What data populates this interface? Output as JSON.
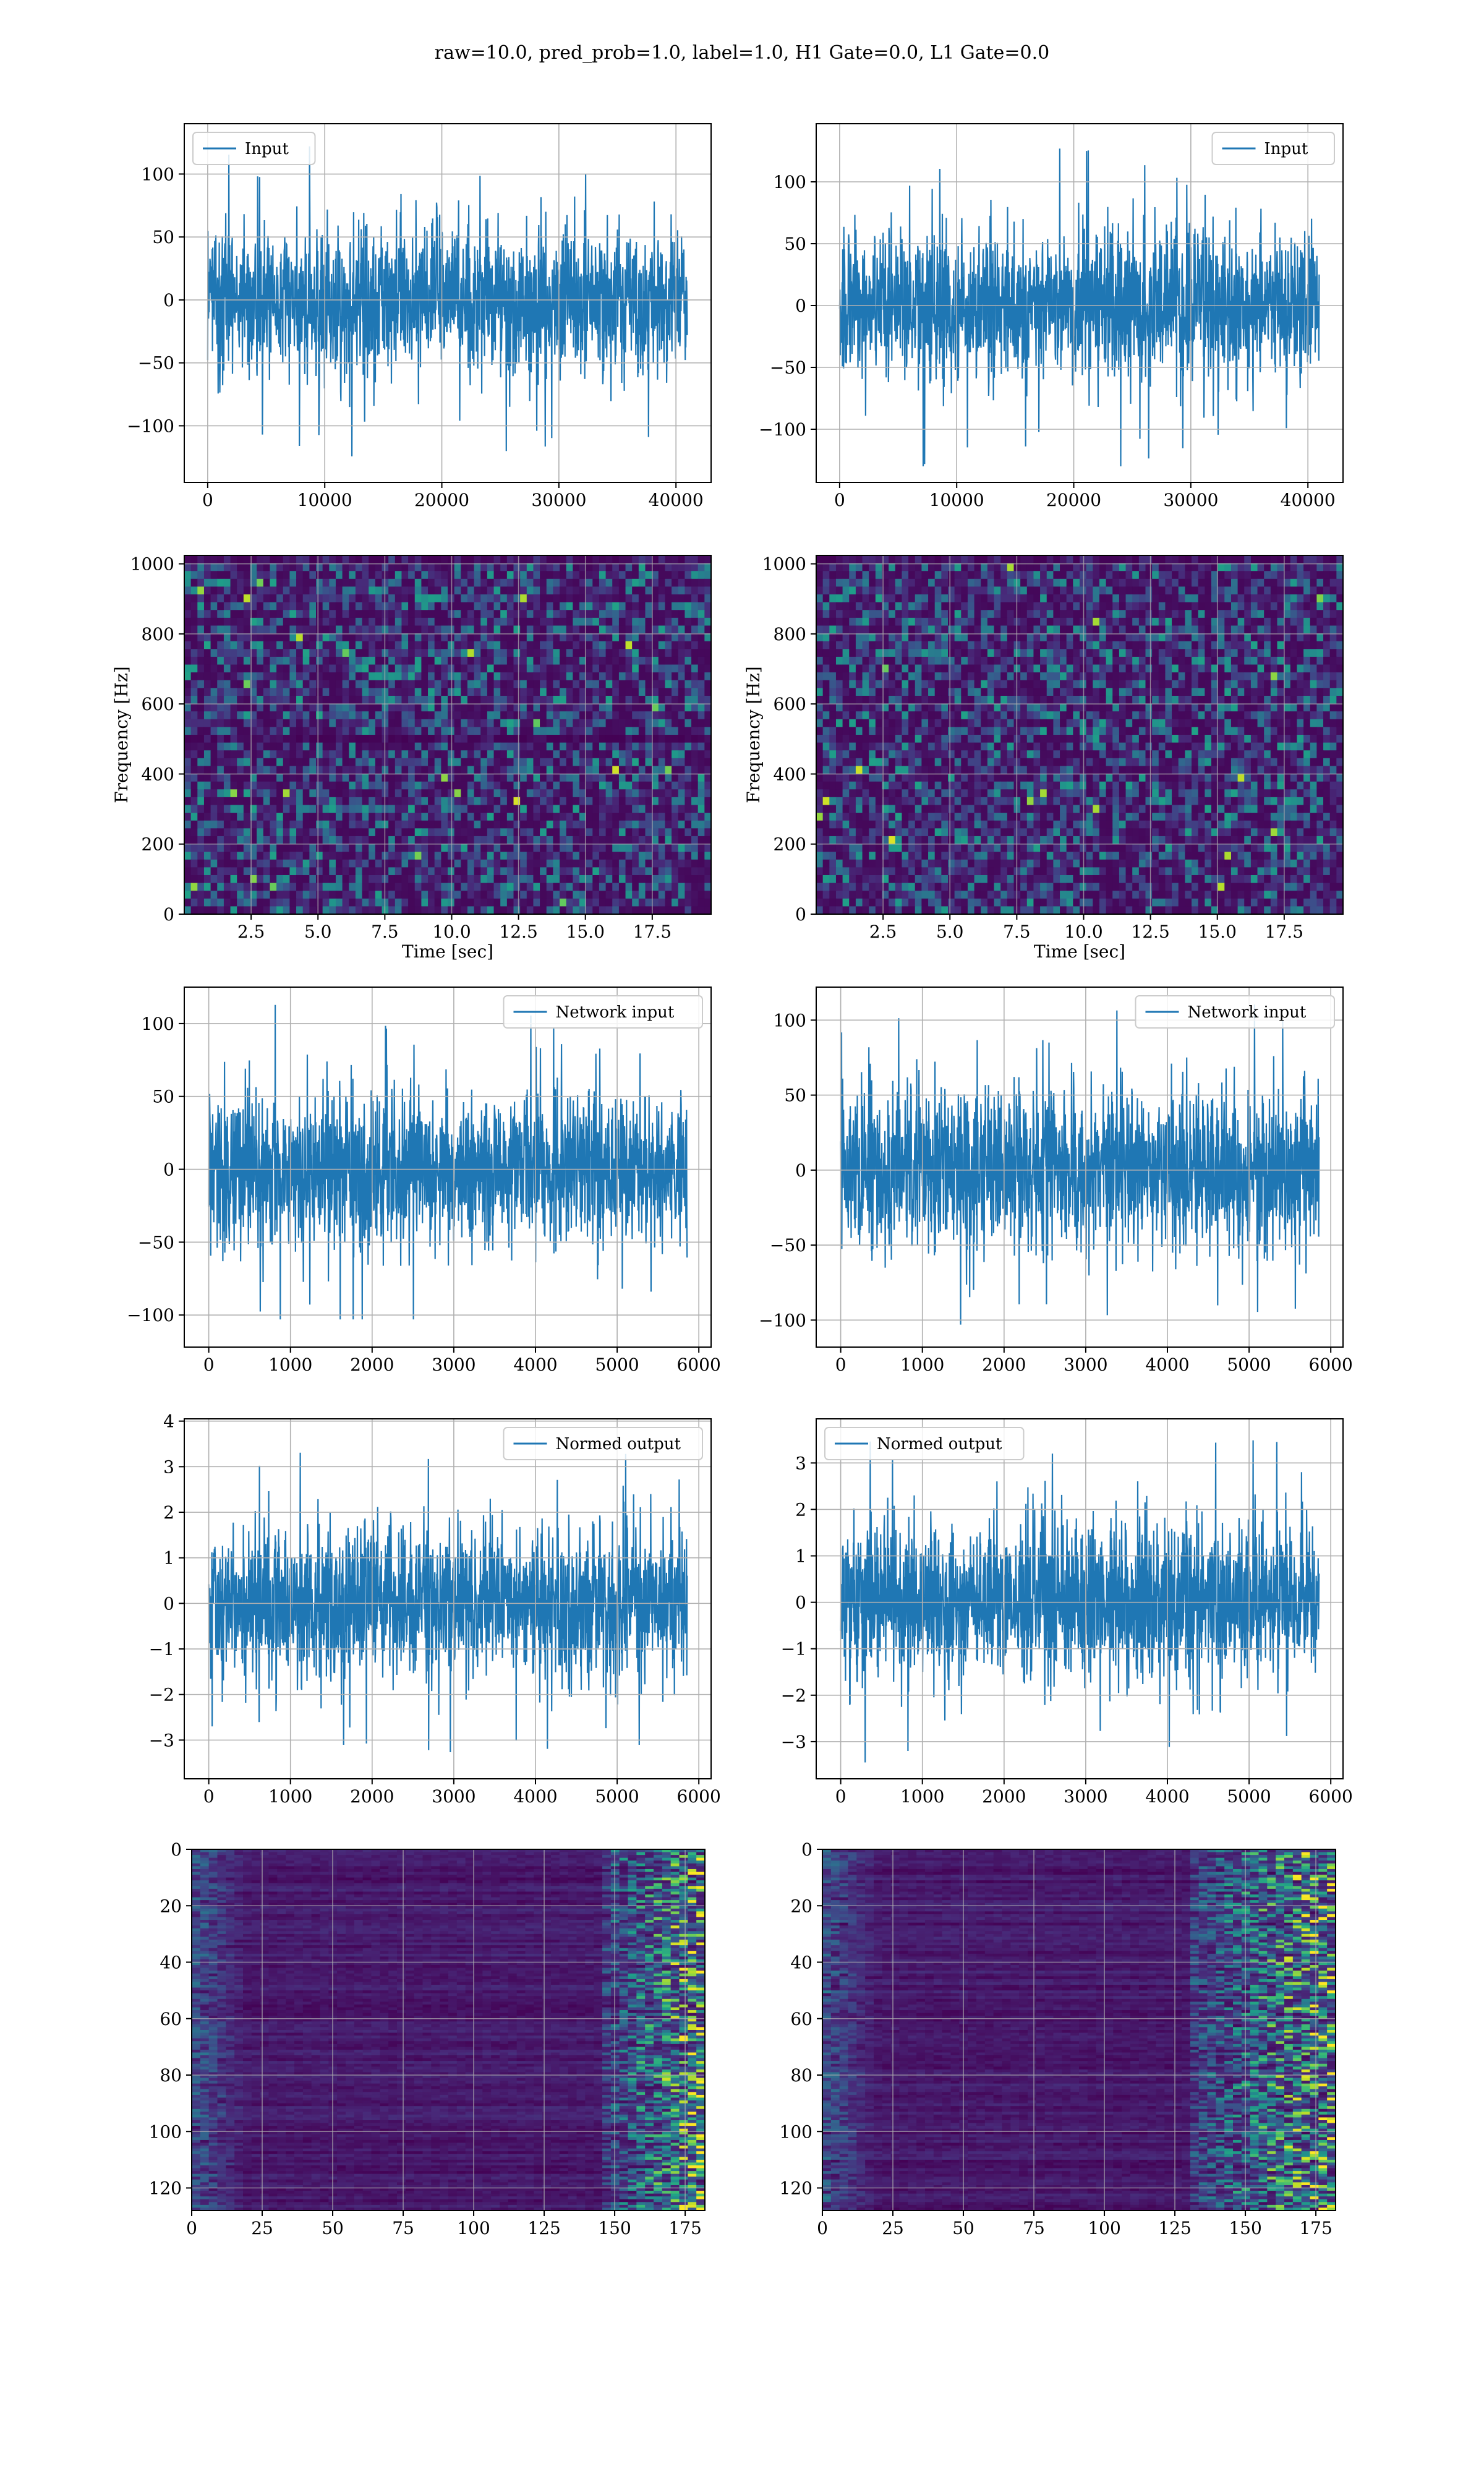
{
  "suptitle": "raw=10.0, pred_prob=1.0, label=1.0, H1 Gate=0.0, L1 Gate=0.0",
  "colors": {
    "line": "#1f77b4",
    "grid": "#b0b0b0",
    "viridis_dark": "#440154",
    "viridis_mid": "#3b528b",
    "viridis_green": "#21918c",
    "viridis_light": "#5ec962",
    "viridis_yellow": "#fde725"
  },
  "chart_data": [
    {
      "id": "input-left",
      "type": "line",
      "series": [
        {
          "name": "Input",
          "n": 40960,
          "mean": 0,
          "typical_band": [
            -50,
            50
          ],
          "extremes": [
            -130,
            122
          ]
        }
      ],
      "xlim": [
        -2000,
        43000
      ],
      "ylim": [
        -145,
        140
      ],
      "xticks": [
        0,
        10000,
        20000,
        30000,
        40000
      ],
      "yticks": [
        -100,
        -50,
        0,
        50,
        100
      ],
      "legend": {
        "label": "Input",
        "loc": "upper left"
      },
      "grid": true
    },
    {
      "id": "input-right",
      "type": "line",
      "series": [
        {
          "name": "Input",
          "n": 40960,
          "mean": 0,
          "typical_band": [
            -50,
            50
          ],
          "extremes": [
            -130,
            133
          ]
        }
      ],
      "xlim": [
        -2000,
        43000
      ],
      "ylim": [
        -143,
        147
      ],
      "xticks": [
        0,
        10000,
        20000,
        30000,
        40000
      ],
      "yticks": [
        -100,
        -50,
        0,
        50,
        100
      ],
      "legend": {
        "label": "Input",
        "loc": "upper right"
      },
      "grid": true
    },
    {
      "id": "spectrogram-left",
      "type": "heatmap",
      "xlabel": "Time [sec]",
      "ylabel": "Frequency [Hz]",
      "xlim": [
        0,
        19.7
      ],
      "ylim": [
        0,
        1024
      ],
      "xticks": [
        2.5,
        5.0,
        7.5,
        10.0,
        12.5,
        15.0,
        17.5
      ],
      "yticks": [
        0,
        200,
        400,
        600,
        800,
        1000
      ],
      "colormap": "viridis",
      "dark_band_hz": 500,
      "grid": true
    },
    {
      "id": "spectrogram-right",
      "type": "heatmap",
      "xlabel": "Time [sec]",
      "ylabel": "Frequency [Hz]",
      "xlim": [
        0,
        19.7
      ],
      "ylim": [
        0,
        1024
      ],
      "xticks": [
        2.5,
        5.0,
        7.5,
        10.0,
        12.5,
        15.0,
        17.5
      ],
      "yticks": [
        0,
        200,
        400,
        600,
        800,
        1000
      ],
      "colormap": "viridis",
      "grid": true
    },
    {
      "id": "network-input-left",
      "type": "line",
      "series": [
        {
          "name": "Network input",
          "n": 5856,
          "mean": 0,
          "typical_band": [
            -45,
            45
          ],
          "extremes": [
            -103,
            115
          ]
        }
      ],
      "xlim": [
        -300,
        6150
      ],
      "ylim": [
        -122,
        125
      ],
      "xticks": [
        0,
        1000,
        2000,
        3000,
        4000,
        5000,
        6000
      ],
      "yticks": [
        -100,
        -50,
        0,
        50,
        100
      ],
      "legend": {
        "label": "Network input",
        "loc": "upper right"
      },
      "grid": true
    },
    {
      "id": "network-input-right",
      "type": "line",
      "series": [
        {
          "name": "Network input",
          "n": 5856,
          "mean": 0,
          "typical_band": [
            -45,
            45
          ],
          "extremes": [
            -103,
            111
          ]
        }
      ],
      "xlim": [
        -300,
        6150
      ],
      "ylim": [
        -118,
        122
      ],
      "xticks": [
        0,
        1000,
        2000,
        3000,
        4000,
        5000,
        6000
      ],
      "yticks": [
        -100,
        -50,
        0,
        50,
        100
      ],
      "legend": {
        "label": "Network input",
        "loc": "upper right"
      },
      "grid": true
    },
    {
      "id": "normed-output-left",
      "type": "line",
      "series": [
        {
          "name": "Normed output",
          "n": 5856,
          "mean": 0,
          "typical_band": [
            -1.4,
            1.4
          ],
          "extremes": [
            -3.5,
            3.5
          ]
        }
      ],
      "xlim": [
        -300,
        6150
      ],
      "ylim": [
        -3.85,
        4.05
      ],
      "xticks": [
        0,
        1000,
        2000,
        3000,
        4000,
        5000,
        6000
      ],
      "yticks": [
        -3,
        -2,
        -1,
        0,
        1,
        2,
        3,
        4
      ],
      "legend": {
        "label": "Normed output",
        "loc": "upper right"
      },
      "grid": true
    },
    {
      "id": "normed-output-right",
      "type": "line",
      "series": [
        {
          "name": "Normed output",
          "n": 5856,
          "mean": 0,
          "typical_band": [
            -1.4,
            1.4
          ],
          "extremes": [
            -3.5,
            3.6
          ]
        }
      ],
      "xlim": [
        -300,
        6150
      ],
      "ylim": [
        -3.8,
        3.95
      ],
      "xticks": [
        0,
        1000,
        2000,
        3000,
        4000,
        5000,
        6000
      ],
      "yticks": [
        -3,
        -2,
        -1,
        0,
        1,
        2,
        3
      ],
      "legend": {
        "label": "Normed output",
        "loc": "upper left"
      },
      "grid": true
    },
    {
      "id": "feature-map-left",
      "type": "heatmap",
      "xlim": [
        0,
        182
      ],
      "ylim": [
        128,
        0
      ],
      "xticks": [
        0,
        25,
        50,
        75,
        100,
        125,
        150,
        175
      ],
      "yticks": [
        0,
        20,
        40,
        60,
        80,
        100,
        120
      ],
      "colormap": "viridis",
      "bright_columns": [
        145,
        182
      ],
      "grid": true
    },
    {
      "id": "feature-map-right",
      "type": "heatmap",
      "xlim": [
        0,
        182
      ],
      "ylim": [
        128,
        0
      ],
      "xticks": [
        0,
        25,
        50,
        75,
        100,
        125,
        150,
        175
      ],
      "yticks": [
        0,
        20,
        40,
        60,
        80,
        100,
        120
      ],
      "colormap": "viridis",
      "bright_columns": [
        130,
        182
      ],
      "grid": true
    }
  ]
}
